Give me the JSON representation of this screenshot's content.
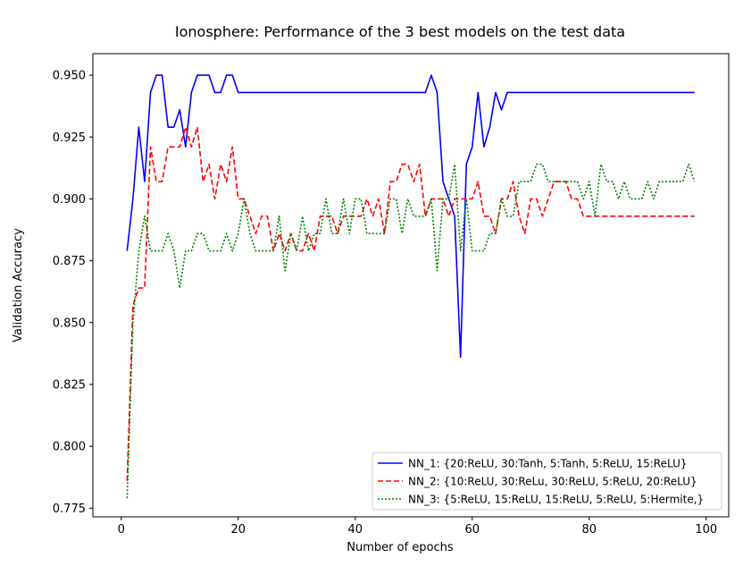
{
  "chart_data": {
    "type": "line",
    "title": "Ionosphere: Performance of the 3 best models on the test data",
    "xlabel": "Number of epochs",
    "ylabel": "Validation Accuracy",
    "xlim": [
      -4.85,
      103.85
    ],
    "ylim": [
      0.7715,
      0.9587
    ],
    "xticks": [
      0,
      20,
      40,
      60,
      80,
      100
    ],
    "xtick_labels": [
      "0",
      "20",
      "40",
      "60",
      "80",
      "100"
    ],
    "yticks": [
      0.775,
      0.8,
      0.825,
      0.85,
      0.875,
      0.9,
      0.925,
      0.95
    ],
    "ytick_labels": [
      "0.775",
      "0.800",
      "0.825",
      "0.850",
      "0.875",
      "0.900",
      "0.925",
      "0.950"
    ],
    "grid": false,
    "legend_position": "lower-right",
    "x": [
      1,
      2,
      3,
      4,
      5,
      6,
      7,
      8,
      9,
      10,
      11,
      12,
      13,
      14,
      15,
      16,
      17,
      18,
      19,
      20,
      21,
      22,
      23,
      24,
      25,
      26,
      27,
      28,
      29,
      30,
      31,
      32,
      33,
      34,
      35,
      36,
      37,
      38,
      39,
      40,
      41,
      42,
      43,
      44,
      45,
      46,
      47,
      48,
      49,
      50,
      51,
      52,
      53,
      54,
      55,
      56,
      57,
      58,
      59,
      60,
      61,
      62,
      63,
      64,
      65,
      66,
      67,
      68,
      69,
      70,
      71,
      72,
      73,
      74,
      75,
      76,
      77,
      78,
      79,
      80,
      81,
      82,
      83,
      84,
      85,
      86,
      87,
      88,
      89,
      90,
      91,
      92,
      93,
      94,
      95,
      96,
      97,
      98
    ],
    "series": [
      {
        "name": "NN_1: {20:ReLU, 30:Tanh, 5:Tanh, 5:ReLU, 15:ReLU}",
        "color": "#0000ff",
        "dash": "solid",
        "values": [
          0.879,
          0.9,
          0.929,
          0.907,
          0.943,
          0.95,
          0.95,
          0.929,
          0.929,
          0.936,
          0.921,
          0.943,
          0.95,
          0.95,
          0.95,
          0.943,
          0.943,
          0.95,
          0.95,
          0.943,
          0.943,
          0.943,
          0.943,
          0.943,
          0.943,
          0.943,
          0.943,
          0.943,
          0.943,
          0.943,
          0.943,
          0.943,
          0.943,
          0.943,
          0.943,
          0.943,
          0.943,
          0.943,
          0.943,
          0.943,
          0.943,
          0.943,
          0.943,
          0.943,
          0.943,
          0.943,
          0.943,
          0.943,
          0.943,
          0.943,
          0.943,
          0.943,
          0.95,
          0.943,
          0.907,
          0.9,
          0.893,
          0.836,
          0.914,
          0.921,
          0.943,
          0.921,
          0.929,
          0.943,
          0.936,
          0.943,
          0.943,
          0.943,
          0.943,
          0.943,
          0.943,
          0.943,
          0.943,
          0.943,
          0.943,
          0.943,
          0.943,
          0.943,
          0.943,
          0.943,
          0.943,
          0.943,
          0.943,
          0.943,
          0.943,
          0.943,
          0.943,
          0.943,
          0.943,
          0.943,
          0.943,
          0.943,
          0.943,
          0.943,
          0.943,
          0.943,
          0.943,
          0.943
        ]
      },
      {
        "name": "NN_2: {10:ReLU, 30:ReLu, 30:ReLU, 5:ReLU, 20:ReLU}",
        "color": "#ff0000",
        "dash": "dashed",
        "values": [
          0.786,
          0.857,
          0.864,
          0.864,
          0.921,
          0.907,
          0.907,
          0.921,
          0.921,
          0.921,
          0.929,
          0.921,
          0.929,
          0.907,
          0.914,
          0.9,
          0.914,
          0.907,
          0.921,
          0.9,
          0.9,
          0.893,
          0.886,
          0.893,
          0.893,
          0.879,
          0.886,
          0.879,
          0.886,
          0.879,
          0.879,
          0.886,
          0.879,
          0.893,
          0.893,
          0.893,
          0.886,
          0.893,
          0.893,
          0.893,
          0.893,
          0.9,
          0.893,
          0.9,
          0.886,
          0.907,
          0.907,
          0.914,
          0.914,
          0.907,
          0.914,
          0.893,
          0.9,
          0.9,
          0.9,
          0.893,
          0.9,
          0.9,
          0.9,
          0.9,
          0.907,
          0.893,
          0.893,
          0.886,
          0.9,
          0.9,
          0.907,
          0.893,
          0.886,
          0.9,
          0.9,
          0.893,
          0.9,
          0.907,
          0.907,
          0.907,
          0.9,
          0.9,
          0.893,
          0.893,
          0.893,
          0.893,
          0.893,
          0.893,
          0.893,
          0.893,
          0.893,
          0.893,
          0.893,
          0.893,
          0.893,
          0.893,
          0.893,
          0.893,
          0.893,
          0.893,
          0.893,
          0.893
        ]
      },
      {
        "name": "NN_3: {5:ReLU, 15:ReLU, 15:ReLU, 5:ReLU, 5:Hermite,}",
        "color": "#008000",
        "dash": "dotted",
        "values": [
          0.779,
          0.85,
          0.879,
          0.893,
          0.879,
          0.879,
          0.879,
          0.886,
          0.879,
          0.864,
          0.879,
          0.879,
          0.886,
          0.886,
          0.879,
          0.879,
          0.879,
          0.886,
          0.879,
          0.886,
          0.9,
          0.886,
          0.879,
          0.879,
          0.879,
          0.879,
          0.893,
          0.871,
          0.886,
          0.879,
          0.893,
          0.879,
          0.886,
          0.886,
          0.9,
          0.886,
          0.886,
          0.9,
          0.886,
          0.9,
          0.9,
          0.886,
          0.886,
          0.886,
          0.886,
          0.9,
          0.9,
          0.886,
          0.9,
          0.893,
          0.893,
          0.893,
          0.9,
          0.871,
          0.9,
          0.9,
          0.914,
          0.879,
          0.9,
          0.879,
          0.879,
          0.879,
          0.886,
          0.886,
          0.9,
          0.893,
          0.893,
          0.907,
          0.907,
          0.907,
          0.914,
          0.914,
          0.907,
          0.907,
          0.907,
          0.907,
          0.907,
          0.907,
          0.9,
          0.907,
          0.893,
          0.914,
          0.907,
          0.907,
          0.9,
          0.907,
          0.9,
          0.9,
          0.9,
          0.907,
          0.9,
          0.907,
          0.907,
          0.907,
          0.907,
          0.907,
          0.914,
          0.907
        ]
      }
    ]
  }
}
